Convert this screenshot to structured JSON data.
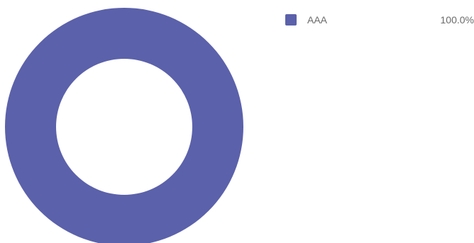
{
  "chart_data": {
    "type": "pie",
    "variant": "donut",
    "slices": [
      {
        "label": "AAA",
        "value": 100.0,
        "percent_label": "100.0%",
        "color": "#5b61aa"
      }
    ],
    "legend_position": "top-right"
  }
}
